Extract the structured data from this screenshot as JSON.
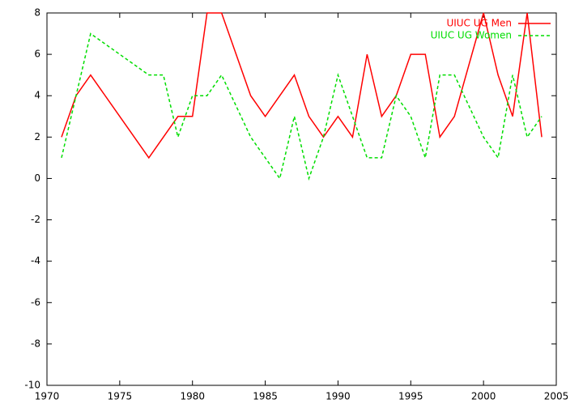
{
  "chart_data": {
    "type": "line",
    "series": [
      {
        "name": "UIUC UG Men",
        "color": "#ff0000",
        "dash": false,
        "x": [
          1971,
          1972,
          1973,
          1977,
          1979,
          1980,
          1981,
          1982,
          1984,
          1985,
          1987,
          1988,
          1989,
          1990,
          1991,
          1992,
          1993,
          1994,
          1995,
          1996,
          1997,
          1998,
          2000,
          2001,
          2002,
          2003,
          2004
        ],
        "values": [
          2,
          4,
          5,
          1,
          3,
          3,
          8,
          8,
          4,
          3,
          5,
          3,
          2,
          3,
          2,
          6,
          3,
          4,
          6,
          6,
          2,
          3,
          8,
          5,
          3,
          8,
          2
        ]
      },
      {
        "name": "UIUC UG Women",
        "color": "#00dd00",
        "dash": true,
        "x": [
          1971,
          1972,
          1973,
          1977,
          1978,
          1979,
          1980,
          1981,
          1982,
          1984,
          1986,
          1987,
          1988,
          1989,
          1990,
          1991,
          1992,
          1993,
          1994,
          1995,
          1996,
          1997,
          1998,
          2000,
          2001,
          2002,
          2003,
          2004
        ],
        "values": [
          1,
          4,
          7,
          5,
          5,
          2,
          4,
          4,
          5,
          2,
          0,
          3,
          0,
          2,
          5,
          3,
          1,
          1,
          4,
          3,
          1,
          5,
          5,
          2,
          1,
          5,
          2,
          3
        ]
      }
    ],
    "xlim": [
      1970,
      2005
    ],
    "xticks": [
      1970,
      1975,
      1980,
      1985,
      1990,
      1995,
      2000,
      2005
    ],
    "ylim": [
      -10,
      8
    ],
    "yticks": [
      -10,
      -8,
      -6,
      -4,
      -2,
      0,
      2,
      4,
      6,
      8
    ],
    "legend": "top-right"
  }
}
